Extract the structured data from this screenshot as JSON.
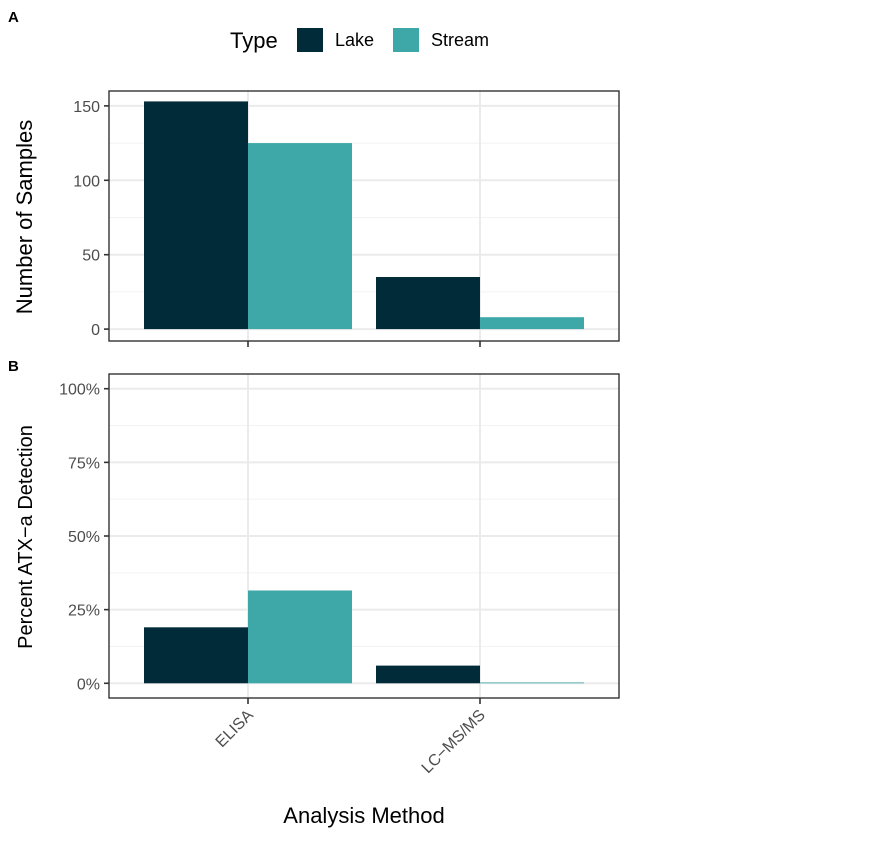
{
  "legend": {
    "title": "Type",
    "items": [
      {
        "label": "Lake",
        "color": "#022b3a"
      },
      {
        "label": "Stream",
        "color": "#3da8a7"
      }
    ]
  },
  "x_axis_label": "Analysis Method",
  "chart_data": [
    {
      "panel": "A",
      "type": "bar",
      "ylabel": "Number of Samples",
      "categories": [
        "ELISA",
        "LC−MS/MS"
      ],
      "ylim": [
        -8,
        160
      ],
      "yticks": [
        0,
        50,
        100,
        150
      ],
      "ytick_labels": [
        "0",
        "50",
        "100",
        "150"
      ],
      "grid": true,
      "series": [
        {
          "name": "Lake",
          "color": "#022b3a",
          "values": [
            153,
            35
          ]
        },
        {
          "name": "Stream",
          "color": "#3da8a7",
          "values": [
            125,
            8
          ]
        }
      ]
    },
    {
      "panel": "B",
      "type": "bar",
      "ylabel": "Percent ATX−a Detection",
      "categories": [
        "ELISA",
        "LC−MS/MS"
      ],
      "ylim": [
        -0.05,
        1.05
      ],
      "yticks": [
        0,
        0.25,
        0.5,
        0.75,
        1.0
      ],
      "ytick_labels": [
        "0%",
        "25%",
        "50%",
        "75%",
        "100%"
      ],
      "grid": true,
      "series": [
        {
          "name": "Lake",
          "color": "#022b3a",
          "values": [
            0.19,
            0.06
          ]
        },
        {
          "name": "Stream",
          "color": "#3da8a7",
          "values": [
            0.315,
            0.002
          ]
        }
      ]
    }
  ]
}
